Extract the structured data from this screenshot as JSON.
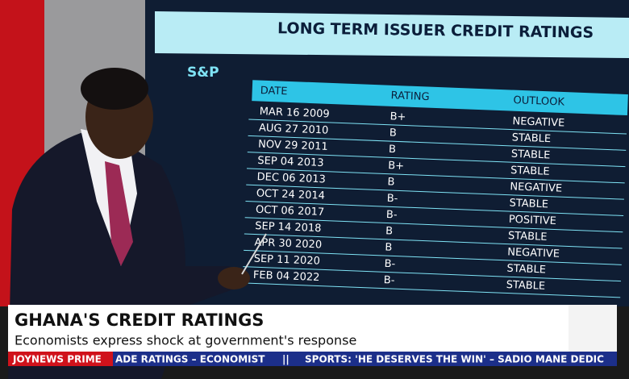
{
  "screen": {
    "title": "LONG TERM ISSUER CREDIT RATINGS",
    "agency": "S&P",
    "table": {
      "header": [
        "DATE",
        "RATING",
        "OUTLOOK"
      ],
      "rows": [
        [
          "MAR 16 2009",
          "B+",
          "NEGATIVE"
        ],
        [
          "AUG 27 2010",
          "B",
          "STABLE"
        ],
        [
          "NOV 29 2011",
          "B",
          "STABLE"
        ],
        [
          "SEP 04 2013",
          "B+",
          "STABLE"
        ],
        [
          "DEC 06 2013",
          "B",
          "NEGATIVE"
        ],
        [
          "OCT 24 2014",
          "B-",
          "STABLE"
        ],
        [
          "OCT 06 2017",
          "B-",
          "POSITIVE"
        ],
        [
          "SEP 14 2018",
          "B",
          "STABLE"
        ],
        [
          "APR 30 2020",
          "B",
          "NEGATIVE"
        ],
        [
          "SEP 11 2020",
          "B-",
          "STABLE"
        ],
        [
          "FEB 04 2022",
          "B-",
          "STABLE"
        ]
      ]
    }
  },
  "lower_third": {
    "headline": "GHANA'S CREDIT RATINGS",
    "subheadline": "Economists express shock at government's response"
  },
  "ticker": {
    "label": "JOYNEWS PRIME",
    "items": [
      "ADE RATINGS – ECONOMIST",
      "||",
      "SPORTS: 'HE DESERVES THE WIN' – SADIO MANE DEDIC"
    ]
  }
}
